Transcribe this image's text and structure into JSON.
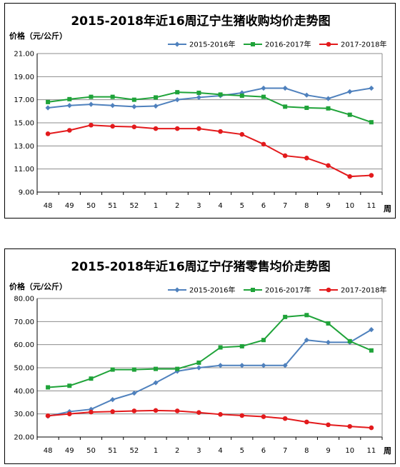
{
  "chart_data": [
    {
      "type": "line",
      "title": "2015-2018年近16周辽宁生猪收购均价走势图",
      "ylabel": "价格（元/公斤）",
      "xlabel": "周",
      "categories": [
        "48",
        "49",
        "50",
        "51",
        "52",
        "1",
        "2",
        "3",
        "4",
        "5",
        "6",
        "7",
        "8",
        "9",
        "10",
        "11"
      ],
      "ylim": [
        9,
        21
      ],
      "yticks": [
        "9.00",
        "11.00",
        "13.00",
        "15.00",
        "17.00",
        "19.00",
        "21.00"
      ],
      "grid": "horizontal",
      "legend": "top-right",
      "series": [
        {
          "name": "2015-2016年",
          "color": "#4F81BD",
          "marker": "diamond",
          "values": [
            16.3,
            16.5,
            16.6,
            16.5,
            16.4,
            16.45,
            17.0,
            17.2,
            17.35,
            17.6,
            18.0,
            18.0,
            17.4,
            17.1,
            17.7,
            18.0
          ]
        },
        {
          "name": "2016-2017年",
          "color": "#1FA339",
          "marker": "square",
          "values": [
            16.8,
            17.05,
            17.25,
            17.25,
            17.0,
            17.2,
            17.65,
            17.6,
            17.45,
            17.35,
            17.25,
            16.4,
            16.3,
            16.25,
            15.7,
            15.05
          ]
        },
        {
          "name": "2017-2018年",
          "color": "#E31A1C",
          "marker": "circle",
          "values": [
            14.05,
            14.35,
            14.8,
            14.7,
            14.65,
            14.5,
            14.5,
            14.5,
            14.25,
            14.0,
            13.15,
            12.15,
            11.95,
            11.3,
            10.35,
            10.45
          ]
        }
      ]
    },
    {
      "type": "line",
      "title": "2015-2018年近16周辽宁仔猪零售均价走势图",
      "ylabel": "价格（元/公斤）",
      "xlabel": "周",
      "categories": [
        "48",
        "49",
        "50",
        "51",
        "52",
        "1",
        "2",
        "3",
        "4",
        "5",
        "6",
        "7",
        "8",
        "9",
        "10",
        "11"
      ],
      "ylim": [
        20,
        80
      ],
      "yticks": [
        "20.00",
        "30.00",
        "40.00",
        "50.00",
        "60.00",
        "70.00",
        "80.00"
      ],
      "grid": "horizontal",
      "legend": "top-right",
      "series": [
        {
          "name": "2015-2016年",
          "color": "#4F81BD",
          "marker": "diamond",
          "values": [
            29.0,
            31.0,
            32.0,
            36.2,
            39.0,
            43.5,
            48.5,
            50.0,
            51.0,
            51.0,
            51.0,
            51.0,
            62.0,
            61.0,
            61.0,
            66.5
          ]
        },
        {
          "name": "2016-2017年",
          "color": "#1FA339",
          "marker": "square",
          "values": [
            41.5,
            42.2,
            45.3,
            49.2,
            49.2,
            49.5,
            49.5,
            52.2,
            58.8,
            59.3,
            62.0,
            72.0,
            72.8,
            69.2,
            61.5,
            57.5
          ]
        },
        {
          "name": "2017-2018年",
          "color": "#E31A1C",
          "marker": "circle",
          "values": [
            29.2,
            30.0,
            30.8,
            31.0,
            31.3,
            31.5,
            31.3,
            30.6,
            29.8,
            29.3,
            28.8,
            28.0,
            26.5,
            25.3,
            24.6,
            24.0
          ]
        }
      ]
    }
  ]
}
